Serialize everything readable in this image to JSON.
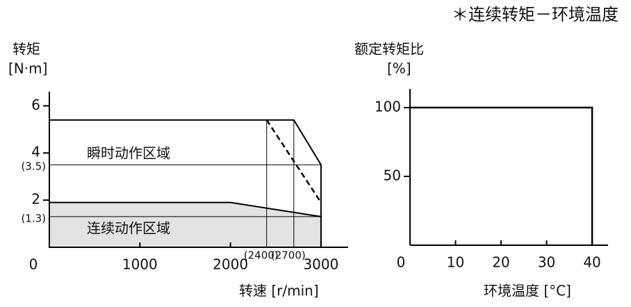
{
  "title": "＊连续转矩－环境温度",
  "chart_data": [
    {
      "type": "line",
      "y_label": [
        "转矩",
        "[N·m]"
      ],
      "x_label": "转速 [r/min]",
      "xlim": [
        0,
        3300
      ],
      "ylim": [
        0,
        6.6
      ],
      "xticks": [
        0,
        1000,
        2000,
        3000
      ],
      "yticks": [
        2,
        4,
        6,
        {
          "value": 3.5,
          "label": "(3.5)"
        },
        {
          "value": 1.3,
          "label": "(1.3)"
        }
      ],
      "x_references": [
        {
          "value": 2400,
          "label": "(2400)"
        },
        {
          "value": 2700,
          "label": "(2700)"
        }
      ],
      "series": [
        {
          "name": "瞬时动作区域",
          "color": "#ffffff",
          "x": [
            0,
            2700,
            3000
          ],
          "values": [
            5.4,
            5.4,
            3.5
          ]
        },
        {
          "color": "#000000",
          "dashed": true,
          "x": [
            2400,
            3000
          ],
          "values": [
            5.4,
            1.9
          ]
        },
        {
          "name": "连续动作区域",
          "color": "#e3e3e3",
          "x": [
            0,
            2000,
            3000
          ],
          "values": [
            1.9,
            1.9,
            1.3
          ]
        }
      ]
    },
    {
      "type": "line",
      "y_label": [
        "额定转矩比",
        "[%]"
      ],
      "x_label": "环境温度 [°C]",
      "xlim": [
        0,
        43.5
      ],
      "ylim": [
        0,
        113.6
      ],
      "xticks": [
        0,
        10,
        20,
        30,
        40
      ],
      "yticks": [
        50,
        100
      ],
      "series": [
        {
          "color": "#000000",
          "x": [
            0,
            40,
            40
          ],
          "values": [
            100,
            100,
            0
          ]
        }
      ]
    }
  ]
}
